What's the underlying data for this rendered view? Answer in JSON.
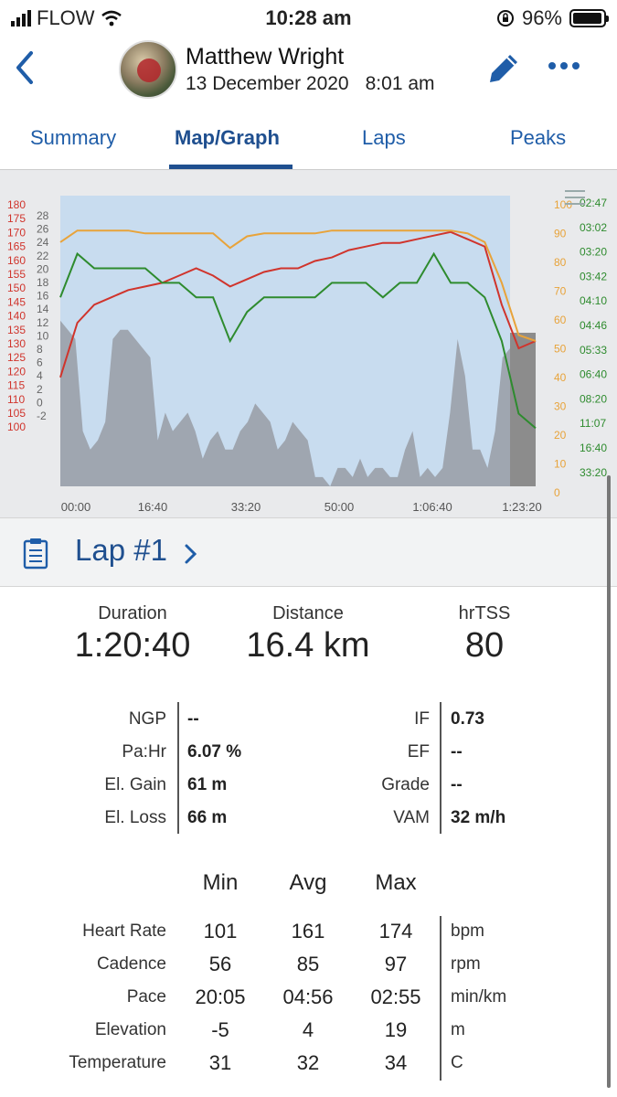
{
  "status": {
    "carrier": "FLOW",
    "time": "10:28 am",
    "battery": "96%"
  },
  "header": {
    "name": "Matthew Wright",
    "date": "13 December 2020",
    "time": "8:01 am"
  },
  "tabs": [
    "Summary",
    "Map/Graph",
    "Laps",
    "Peaks"
  ],
  "chart_data": {
    "type": "line",
    "x_ticks": [
      "00:00",
      "16:40",
      "33:20",
      "50:00",
      "1:06:40",
      "1:23:20"
    ],
    "axis_heart_rate": [
      "180",
      "175",
      "170",
      "165",
      "160",
      "155",
      "150",
      "145",
      "140",
      "135",
      "130",
      "125",
      "120",
      "115",
      "110",
      "105",
      "100"
    ],
    "axis_elevation": [
      "28",
      "26",
      "24",
      "22",
      "20",
      "18",
      "16",
      "14",
      "12",
      "10",
      "8",
      "6",
      "4",
      "2",
      "0",
      "-2"
    ],
    "axis_cadence": [
      "100",
      "90",
      "80",
      "70",
      "60",
      "50",
      "40",
      "30",
      "20",
      "10",
      "0"
    ],
    "axis_pace": [
      "02:47",
      "03:02",
      "03:20",
      "03:42",
      "04:10",
      "04:46",
      "05:33",
      "06:40",
      "08:20",
      "11:07",
      "16:40",
      "33:20"
    ],
    "series": [
      {
        "values": [
          130,
          145,
          150,
          152,
          154,
          155,
          156,
          158,
          160,
          158,
          155,
          157,
          159,
          160,
          160,
          162,
          163,
          165,
          166,
          167,
          167,
          168,
          169,
          170,
          168,
          166,
          150,
          138,
          140
        ],
        "color": "#d0342c"
      },
      {
        "values": [
          84,
          88,
          88,
          88,
          88,
          87,
          87,
          87,
          87,
          87,
          82,
          86,
          87,
          87,
          87,
          87,
          88,
          88,
          88,
          88,
          88,
          88,
          88,
          88,
          87,
          84,
          70,
          52,
          50
        ],
        "color": "#e8a33a"
      },
      {
        "values": [
          13,
          16,
          15,
          15,
          15,
          15,
          14,
          14,
          13,
          13,
          10,
          12,
          13,
          13,
          13,
          13,
          14,
          14,
          14,
          13,
          14,
          14,
          16,
          14,
          14,
          13,
          10,
          5,
          4
        ],
        "color": "#2e8b2e"
      }
    ],
    "ylim_heart_rate": [
      100,
      180
    ],
    "ylim_cadence": [
      0,
      100
    ],
    "ylim_elevation": [
      -2,
      28
    ],
    "colors": {
      "heart": "#d0342c",
      "cadence": "#e8a33a",
      "pace": "#2e8b2e",
      "elevation": "#9aa0a8"
    }
  },
  "lap": {
    "title": "Lap #1"
  },
  "summary": [
    {
      "label": "Duration",
      "value": "1:20:40"
    },
    {
      "label": "Distance",
      "value": "16.4 km"
    },
    {
      "label": "hrTSS",
      "value": "80"
    }
  ],
  "metrics_left": [
    {
      "k": "NGP",
      "v": "--"
    },
    {
      "k": "Pa:Hr",
      "v": "6.07 %"
    },
    {
      "k": "El. Gain",
      "v": "61 m"
    },
    {
      "k": "El. Loss",
      "v": "66 m"
    }
  ],
  "metrics_right": [
    {
      "k": "IF",
      "v": "0.73"
    },
    {
      "k": "EF",
      "v": "--"
    },
    {
      "k": "Grade",
      "v": "--"
    },
    {
      "k": "VAM",
      "v": "32 m/h"
    }
  ],
  "stats_head": [
    "Min",
    "Avg",
    "Max"
  ],
  "stats": [
    {
      "name": "Heart Rate",
      "min": "101",
      "avg": "161",
      "max": "174",
      "unit": "bpm"
    },
    {
      "name": "Cadence",
      "min": "56",
      "avg": "85",
      "max": "97",
      "unit": "rpm"
    },
    {
      "name": "Pace",
      "min": "20:05",
      "avg": "04:56",
      "max": "02:55",
      "unit": "min/km"
    },
    {
      "name": "Elevation",
      "min": "-5",
      "avg": "4",
      "max": "19",
      "unit": "m"
    },
    {
      "name": "Temperature",
      "min": "31",
      "avg": "32",
      "max": "34",
      "unit": "C"
    }
  ]
}
